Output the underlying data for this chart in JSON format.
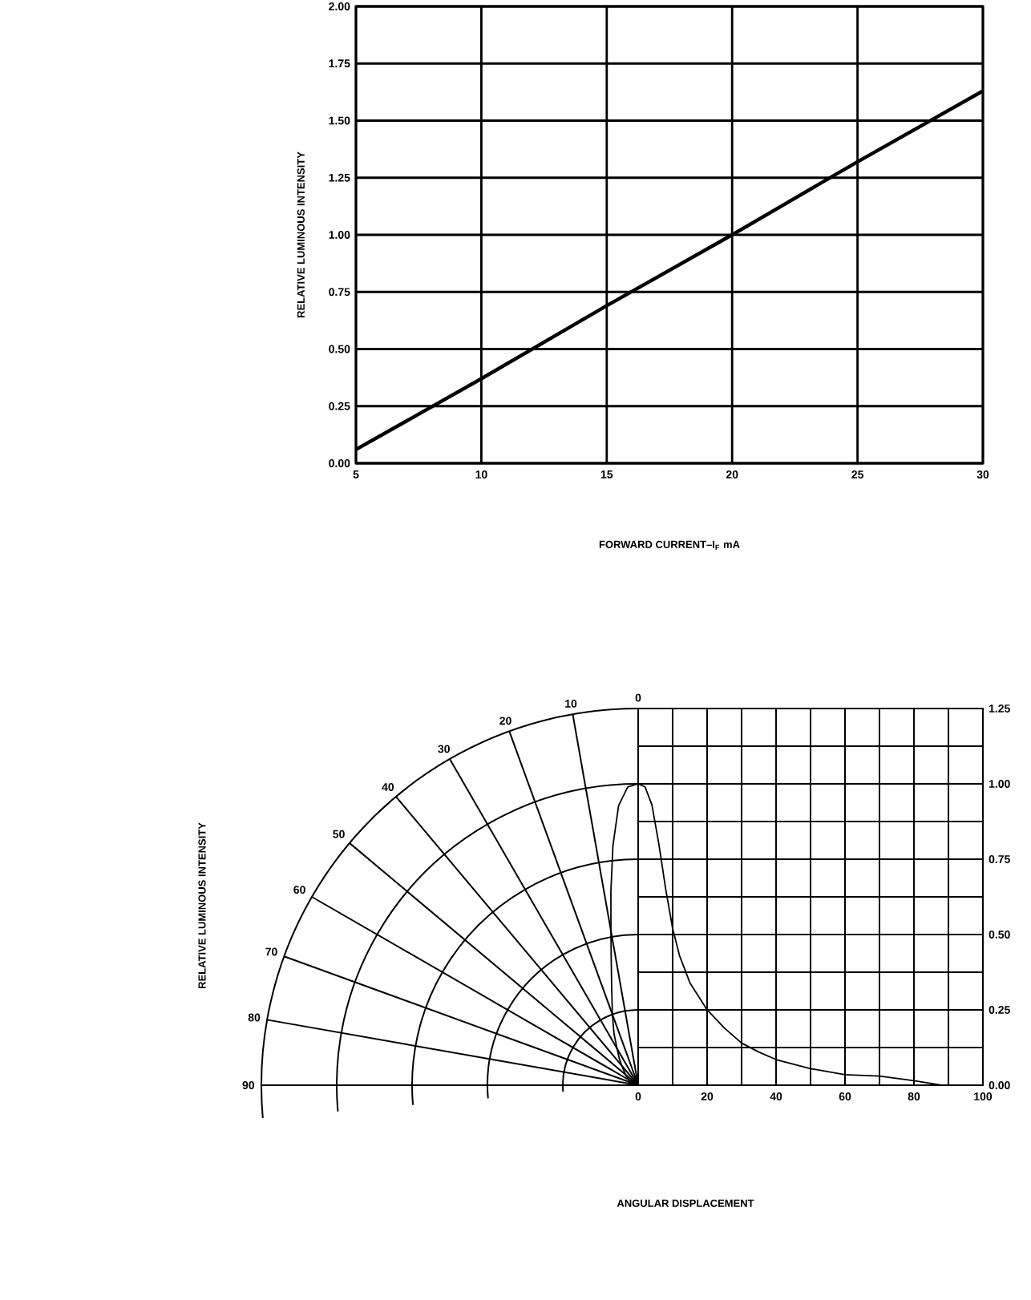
{
  "chart_data": [
    {
      "type": "line",
      "color": "#000000",
      "grid": true,
      "xlabel": "FORWARD CURRENT–I$_{F}$ mA",
      "ylabel": "RELATIVE LUMINOUS INTENSITY",
      "x": [
        5,
        10,
        15,
        20,
        25,
        30
      ],
      "values": [
        0.06,
        0.37,
        0.69,
        1.0,
        1.32,
        1.63
      ],
      "xlim": [
        5,
        30
      ],
      "ylim": [
        0,
        2
      ],
      "xticks": [
        5,
        10,
        15,
        20,
        25,
        30
      ],
      "yticks": [
        {
          "value": 0,
          "label": "0.00"
        },
        {
          "value": 0.25,
          "label": "0.25"
        },
        {
          "value": 0.5,
          "label": "0.50"
        },
        {
          "value": 0.75,
          "label": "0.75"
        },
        {
          "value": 1.0,
          "label": "1.00"
        },
        {
          "value": 1.25,
          "label": "1.25"
        },
        {
          "value": 1.5,
          "label": "1.50"
        },
        {
          "value": 1.75,
          "label": "1.75"
        },
        {
          "value": 2.0,
          "label": "2.00"
        }
      ]
    },
    {
      "type": "line",
      "color": "#000000",
      "grid": true,
      "xlabel": "ANGULAR DISPLACEMENT",
      "ylabel": "RELATIVE LUMINOUS INTENSITY",
      "x": [
        0,
        2,
        4,
        6,
        8,
        10,
        12,
        15,
        20,
        25,
        30,
        35,
        40,
        50,
        60,
        70,
        80,
        88
      ],
      "values": [
        1.0,
        0.99,
        0.93,
        0.8,
        0.65,
        0.52,
        0.43,
        0.34,
        0.25,
        0.19,
        0.14,
        0.11,
        0.085,
        0.055,
        0.035,
        0.03,
        0.015,
        0.0
      ],
      "xlim": [
        0,
        100
      ],
      "ylim": [
        0,
        1.25
      ],
      "xticks": [
        0,
        {
          "value": 10,
          "label": null
        },
        20,
        {
          "value": 30,
          "label": null
        },
        40,
        {
          "value": 50,
          "label": null
        },
        60,
        {
          "value": 70,
          "label": null
        },
        80,
        {
          "value": 90,
          "label": null
        },
        100
      ],
      "yticks": [
        {
          "value": 0,
          "label": "0.00"
        },
        {
          "value": 0.125,
          "label": null
        },
        {
          "value": 0.25,
          "label": "0.25"
        },
        {
          "value": 0.375,
          "label": null
        },
        {
          "value": 0.5,
          "label": "0.50"
        },
        {
          "value": 0.625,
          "label": null
        },
        {
          "value": 0.75,
          "label": "0.75"
        },
        {
          "value": 0.875,
          "label": null
        },
        {
          "value": 1.0,
          "label": "1.00"
        },
        {
          "value": 1.125,
          "label": null
        },
        {
          "value": 1.25,
          "label": "1.25"
        }
      ],
      "annotations": [
        "0",
        "10",
        "20",
        "30",
        "40",
        "50",
        "60",
        "70",
        "80",
        "90"
      ]
    }
  ]
}
